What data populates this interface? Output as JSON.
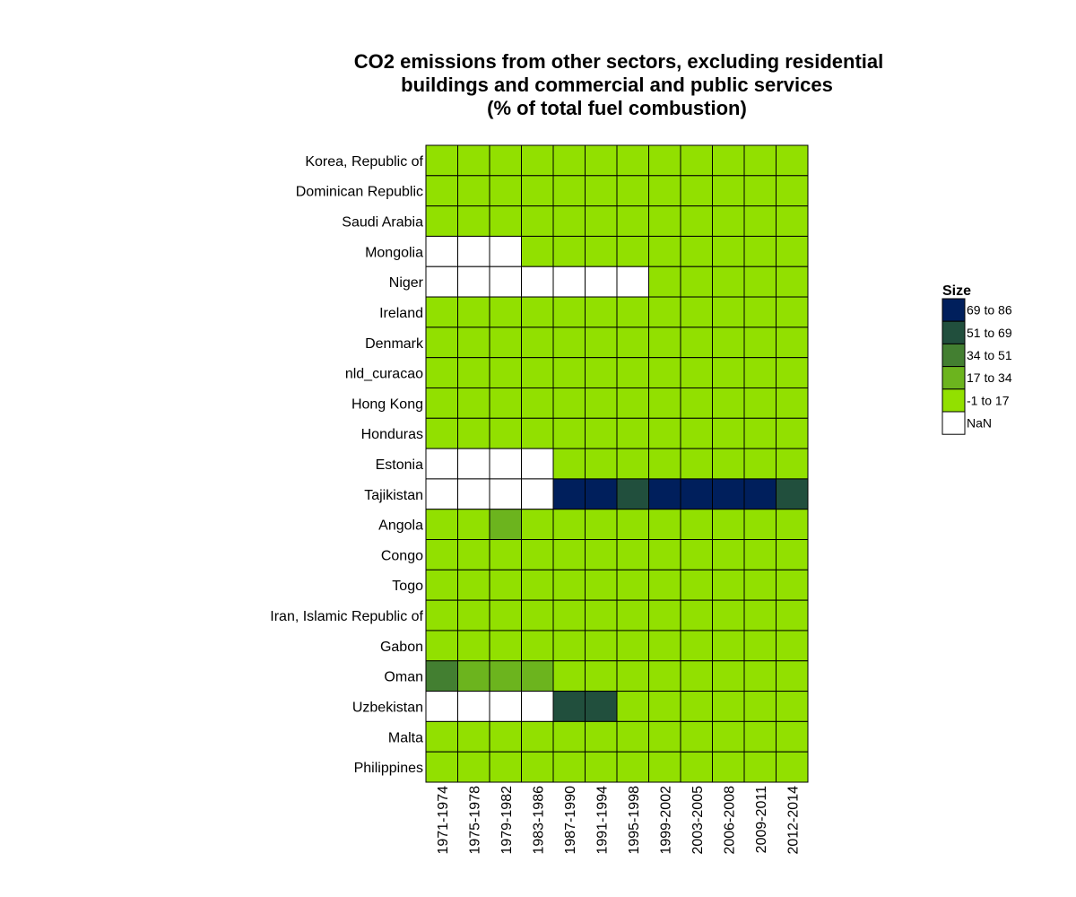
{
  "chart_data": {
    "type": "heatmap",
    "title_lines": [
      "CO2 emissions from other sectors, excluding residential",
      "buildings and commercial and public services",
      "(% of total fuel combustion)"
    ],
    "rows": [
      "Korea, Republic of",
      "Dominican Republic",
      "Saudi Arabia",
      "Mongolia",
      "Niger",
      "Ireland",
      "Denmark",
      "nld_curacao",
      "Hong Kong",
      "Honduras",
      "Estonia",
      "Tajikistan",
      "Angola",
      "Congo",
      "Togo",
      "Iran, Islamic Republic of",
      "Gabon",
      "Oman",
      "Uzbekistan",
      "Malta",
      "Philippines"
    ],
    "columns": [
      "1971-1974",
      "1975-1978",
      "1979-1982",
      "1983-1986",
      "1987-1990",
      "1991-1994",
      "1995-1998",
      "1999-2002",
      "2003-2005",
      "2006-2008",
      "2009-2011",
      "2012-2014"
    ],
    "cells": [
      [
        "-1 to 17",
        "-1 to 17",
        "-1 to 17",
        "-1 to 17",
        "-1 to 17",
        "-1 to 17",
        "-1 to 17",
        "-1 to 17",
        "-1 to 17",
        "-1 to 17",
        "-1 to 17",
        "-1 to 17"
      ],
      [
        "-1 to 17",
        "-1 to 17",
        "-1 to 17",
        "-1 to 17",
        "-1 to 17",
        "-1 to 17",
        "-1 to 17",
        "-1 to 17",
        "-1 to 17",
        "-1 to 17",
        "-1 to 17",
        "-1 to 17"
      ],
      [
        "-1 to 17",
        "-1 to 17",
        "-1 to 17",
        "-1 to 17",
        "-1 to 17",
        "-1 to 17",
        "-1 to 17",
        "-1 to 17",
        "-1 to 17",
        "-1 to 17",
        "-1 to 17",
        "-1 to 17"
      ],
      [
        "NaN",
        "NaN",
        "NaN",
        "-1 to 17",
        "-1 to 17",
        "-1 to 17",
        "-1 to 17",
        "-1 to 17",
        "-1 to 17",
        "-1 to 17",
        "-1 to 17",
        "-1 to 17"
      ],
      [
        "NaN",
        "NaN",
        "NaN",
        "NaN",
        "NaN",
        "NaN",
        "NaN",
        "-1 to 17",
        "-1 to 17",
        "-1 to 17",
        "-1 to 17",
        "-1 to 17"
      ],
      [
        "-1 to 17",
        "-1 to 17",
        "-1 to 17",
        "-1 to 17",
        "-1 to 17",
        "-1 to 17",
        "-1 to 17",
        "-1 to 17",
        "-1 to 17",
        "-1 to 17",
        "-1 to 17",
        "-1 to 17"
      ],
      [
        "-1 to 17",
        "-1 to 17",
        "-1 to 17",
        "-1 to 17",
        "-1 to 17",
        "-1 to 17",
        "-1 to 17",
        "-1 to 17",
        "-1 to 17",
        "-1 to 17",
        "-1 to 17",
        "-1 to 17"
      ],
      [
        "-1 to 17",
        "-1 to 17",
        "-1 to 17",
        "-1 to 17",
        "-1 to 17",
        "-1 to 17",
        "-1 to 17",
        "-1 to 17",
        "-1 to 17",
        "-1 to 17",
        "-1 to 17",
        "-1 to 17"
      ],
      [
        "-1 to 17",
        "-1 to 17",
        "-1 to 17",
        "-1 to 17",
        "-1 to 17",
        "-1 to 17",
        "-1 to 17",
        "-1 to 17",
        "-1 to 17",
        "-1 to 17",
        "-1 to 17",
        "-1 to 17"
      ],
      [
        "-1 to 17",
        "-1 to 17",
        "-1 to 17",
        "-1 to 17",
        "-1 to 17",
        "-1 to 17",
        "-1 to 17",
        "-1 to 17",
        "-1 to 17",
        "-1 to 17",
        "-1 to 17",
        "-1 to 17"
      ],
      [
        "NaN",
        "NaN",
        "NaN",
        "NaN",
        "-1 to 17",
        "-1 to 17",
        "-1 to 17",
        "-1 to 17",
        "-1 to 17",
        "-1 to 17",
        "-1 to 17",
        "-1 to 17"
      ],
      [
        "NaN",
        "NaN",
        "NaN",
        "NaN",
        "69 to 86",
        "69 to 86",
        "51 to 69",
        "69 to 86",
        "69 to 86",
        "69 to 86",
        "69 to 86",
        "51 to 69"
      ],
      [
        "-1 to 17",
        "-1 to 17",
        "17 to 34",
        "-1 to 17",
        "-1 to 17",
        "-1 to 17",
        "-1 to 17",
        "-1 to 17",
        "-1 to 17",
        "-1 to 17",
        "-1 to 17",
        "-1 to 17"
      ],
      [
        "-1 to 17",
        "-1 to 17",
        "-1 to 17",
        "-1 to 17",
        "-1 to 17",
        "-1 to 17",
        "-1 to 17",
        "-1 to 17",
        "-1 to 17",
        "-1 to 17",
        "-1 to 17",
        "-1 to 17"
      ],
      [
        "-1 to 17",
        "-1 to 17",
        "-1 to 17",
        "-1 to 17",
        "-1 to 17",
        "-1 to 17",
        "-1 to 17",
        "-1 to 17",
        "-1 to 17",
        "-1 to 17",
        "-1 to 17",
        "-1 to 17"
      ],
      [
        "-1 to 17",
        "-1 to 17",
        "-1 to 17",
        "-1 to 17",
        "-1 to 17",
        "-1 to 17",
        "-1 to 17",
        "-1 to 17",
        "-1 to 17",
        "-1 to 17",
        "-1 to 17",
        "-1 to 17"
      ],
      [
        "-1 to 17",
        "-1 to 17",
        "-1 to 17",
        "-1 to 17",
        "-1 to 17",
        "-1 to 17",
        "-1 to 17",
        "-1 to 17",
        "-1 to 17",
        "-1 to 17",
        "-1 to 17",
        "-1 to 17"
      ],
      [
        "34 to 51",
        "17 to 34",
        "17 to 34",
        "17 to 34",
        "-1 to 17",
        "-1 to 17",
        "-1 to 17",
        "-1 to 17",
        "-1 to 17",
        "-1 to 17",
        "-1 to 17",
        "-1 to 17"
      ],
      [
        "NaN",
        "NaN",
        "NaN",
        "NaN",
        "51 to 69",
        "51 to 69",
        "-1 to 17",
        "-1 to 17",
        "-1 to 17",
        "-1 to 17",
        "-1 to 17",
        "-1 to 17"
      ],
      [
        "-1 to 17",
        "-1 to 17",
        "-1 to 17",
        "-1 to 17",
        "-1 to 17",
        "-1 to 17",
        "-1 to 17",
        "-1 to 17",
        "-1 to 17",
        "-1 to 17",
        "-1 to 17",
        "-1 to 17"
      ],
      [
        "-1 to 17",
        "-1 to 17",
        "-1 to 17",
        "-1 to 17",
        "-1 to 17",
        "-1 to 17",
        "-1 to 17",
        "-1 to 17",
        "-1 to 17",
        "-1 to 17",
        "-1 to 17",
        "-1 to 17"
      ]
    ],
    "legend": {
      "title": "Size",
      "placement": "right",
      "entries": [
        {
          "label": "69 to 86",
          "color": "#001f5c"
        },
        {
          "label": "51 to 69",
          "color": "#214f3d"
        },
        {
          "label": "34 to 51",
          "color": "#437f31"
        },
        {
          "label": "17 to 34",
          "color": "#6cb41e"
        },
        {
          "label": "-1 to 17",
          "color": "#92e000"
        },
        {
          "label": "NaN",
          "color": "#ffffff"
        }
      ]
    },
    "grid": true,
    "cell_border_color": "#000000"
  }
}
